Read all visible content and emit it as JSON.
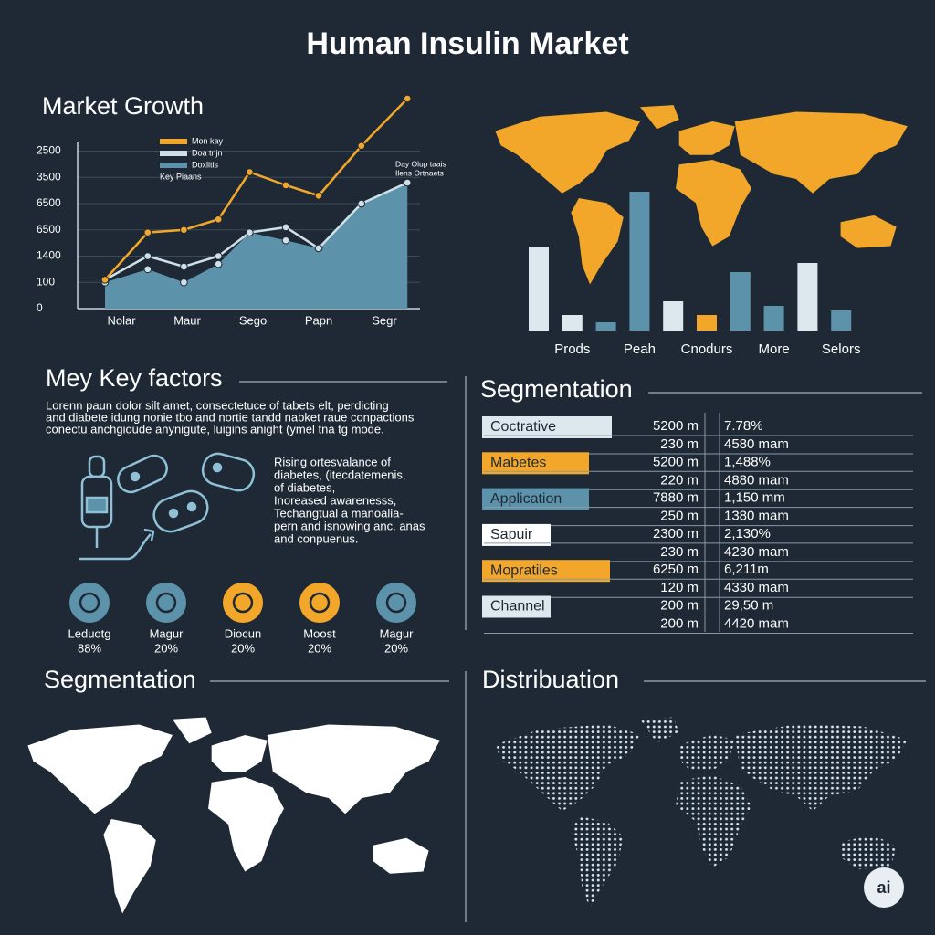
{
  "title": "Human Insulin Market",
  "market_growth_title": "Market Growth",
  "chart_data": [
    {
      "type": "line",
      "x": [
        0.5,
        1.8,
        2.9,
        3.95,
        4.9,
        6,
        7,
        8.3,
        9.7
      ],
      "xlim": [
        0,
        10
      ],
      "xticks": [
        {
          "value": 1,
          "label": "Nolar"
        },
        {
          "value": 3,
          "label": "Maur"
        },
        {
          "value": 5,
          "label": "Sego"
        },
        {
          "value": 7,
          "label": "Papn"
        },
        {
          "value": 9,
          "label": "Segr"
        }
      ],
      "ylim": [
        0,
        8
      ],
      "yticks": [
        {
          "value": 0,
          "label": "0"
        },
        {
          "value": 1,
          "label": "100"
        },
        {
          "value": 2,
          "label": "1400"
        },
        {
          "value": 3,
          "label": "6500"
        },
        {
          "value": 4,
          "label": "6500"
        },
        {
          "value": 5,
          "label": "3500"
        },
        {
          "value": 6,
          "label": "2500"
        }
      ],
      "grid": true,
      "series": [
        {
          "name": "Doxlitis",
          "color": "#5c93ab",
          "area": true,
          "values": [
            1.0,
            1.5,
            1.0,
            1.7,
            2.9,
            2.6,
            2.3,
            4.0,
            4.8
          ]
        },
        {
          "name": "Doa tnjn",
          "color": "#cfe0e8",
          "area": false,
          "values": [
            1.1,
            2.0,
            1.6,
            2.0,
            2.9,
            3.1,
            2.3,
            4.0,
            4.8
          ]
        },
        {
          "name": "Mon kay",
          "color": "#f2a72a",
          "area": false,
          "values": [
            1.1,
            2.9,
            3.0,
            3.4,
            5.2,
            4.7,
            4.3,
            6.2,
            8.0
          ]
        }
      ],
      "legend_note": "Key Piaans",
      "annotations": [
        "Day Olup taais",
        "Ilens Ortnaets"
      ]
    },
    {
      "type": "bar",
      "categories": [
        null,
        "Prods",
        null,
        "Peah",
        null,
        "Cnodurs",
        null,
        "More",
        null,
        "Selors"
      ],
      "values": [
        92,
        17,
        9,
        152,
        32,
        17,
        64,
        27,
        74,
        22
      ],
      "colors": [
        "#dde8ee",
        "#dde8ee",
        "#5c93ab",
        "#5c93ab",
        "#dde8ee",
        "#f2a72a",
        "#5c93ab",
        "#5c93ab",
        "#dde8ee",
        "#5c93ab"
      ],
      "ylim": [
        0,
        160
      ]
    }
  ],
  "key_factors": {
    "title": "Mey Key factors",
    "paragraph": [
      "Lorenn paun dolor silt amet, consectetuce of tabets elt, perdicting",
      "and diabete idung nonie tbo and nortie tandd nabket raue conpactions",
      "conectu anchgioude anynigute, luigins anight (ymel tna tg mode."
    ],
    "side_text": [
      "Rising ortesvalance of",
      "diabetes, (itecdatemenis,",
      "of diabetes,",
      "Inoreased awarenesss,",
      "Techangtual a manoalia-",
      "pern and isnowing anc. anas",
      "and conpuenus."
    ],
    "icons": [
      {
        "label": "Leduotg",
        "value": "88%",
        "color": "#5c93ab"
      },
      {
        "label": "Magur",
        "value": "20%",
        "color": "#5c93ab"
      },
      {
        "label": "Diocun",
        "value": "20%",
        "color": "#f2a72a"
      },
      {
        "label": "Moost",
        "value": "20%",
        "color": "#f2a72a"
      },
      {
        "label": "Magur",
        "value": "20%",
        "color": "#5c93ab"
      }
    ]
  },
  "segmentation_table": {
    "title": "Segmentation",
    "groups": [
      {
        "label": "Coctrative",
        "color": "#dde8ee",
        "rows": [
          [
            "5200 m",
            "7.78%"
          ],
          [
            "230 m",
            "4580 mam"
          ]
        ]
      },
      {
        "label": "Mabetes",
        "color": "#f2a72a",
        "rows": [
          [
            "5200 m",
            "1,488%"
          ],
          [
            "220 m",
            "4880 mam"
          ]
        ]
      },
      {
        "label": "Application",
        "color": "#5c93ab",
        "rows": [
          [
            "7880 m",
            "1,150 mm"
          ],
          [
            "250 m",
            "1380 mam"
          ]
        ]
      },
      {
        "label": "Sapuir",
        "color": "#ffffff",
        "rows": [
          [
            "2300 m",
            "2,130%"
          ],
          [
            "230 m",
            "4230 mam"
          ]
        ]
      },
      {
        "label": "Mopratiles",
        "color": "#f2a72a",
        "rows": [
          [
            "6250 m",
            "6,211m"
          ],
          [
            "120 m",
            "4330 mam"
          ]
        ]
      },
      {
        "label": "Channel",
        "color": "#dde8ee",
        "rows": [
          [
            "200 m",
            "29,50 m"
          ],
          [
            "200 m",
            "4420 mam"
          ]
        ]
      }
    ]
  },
  "segmentation_map_title": "Segmentation",
  "distribution_map_title": "Distribuation",
  "badge": "ai"
}
